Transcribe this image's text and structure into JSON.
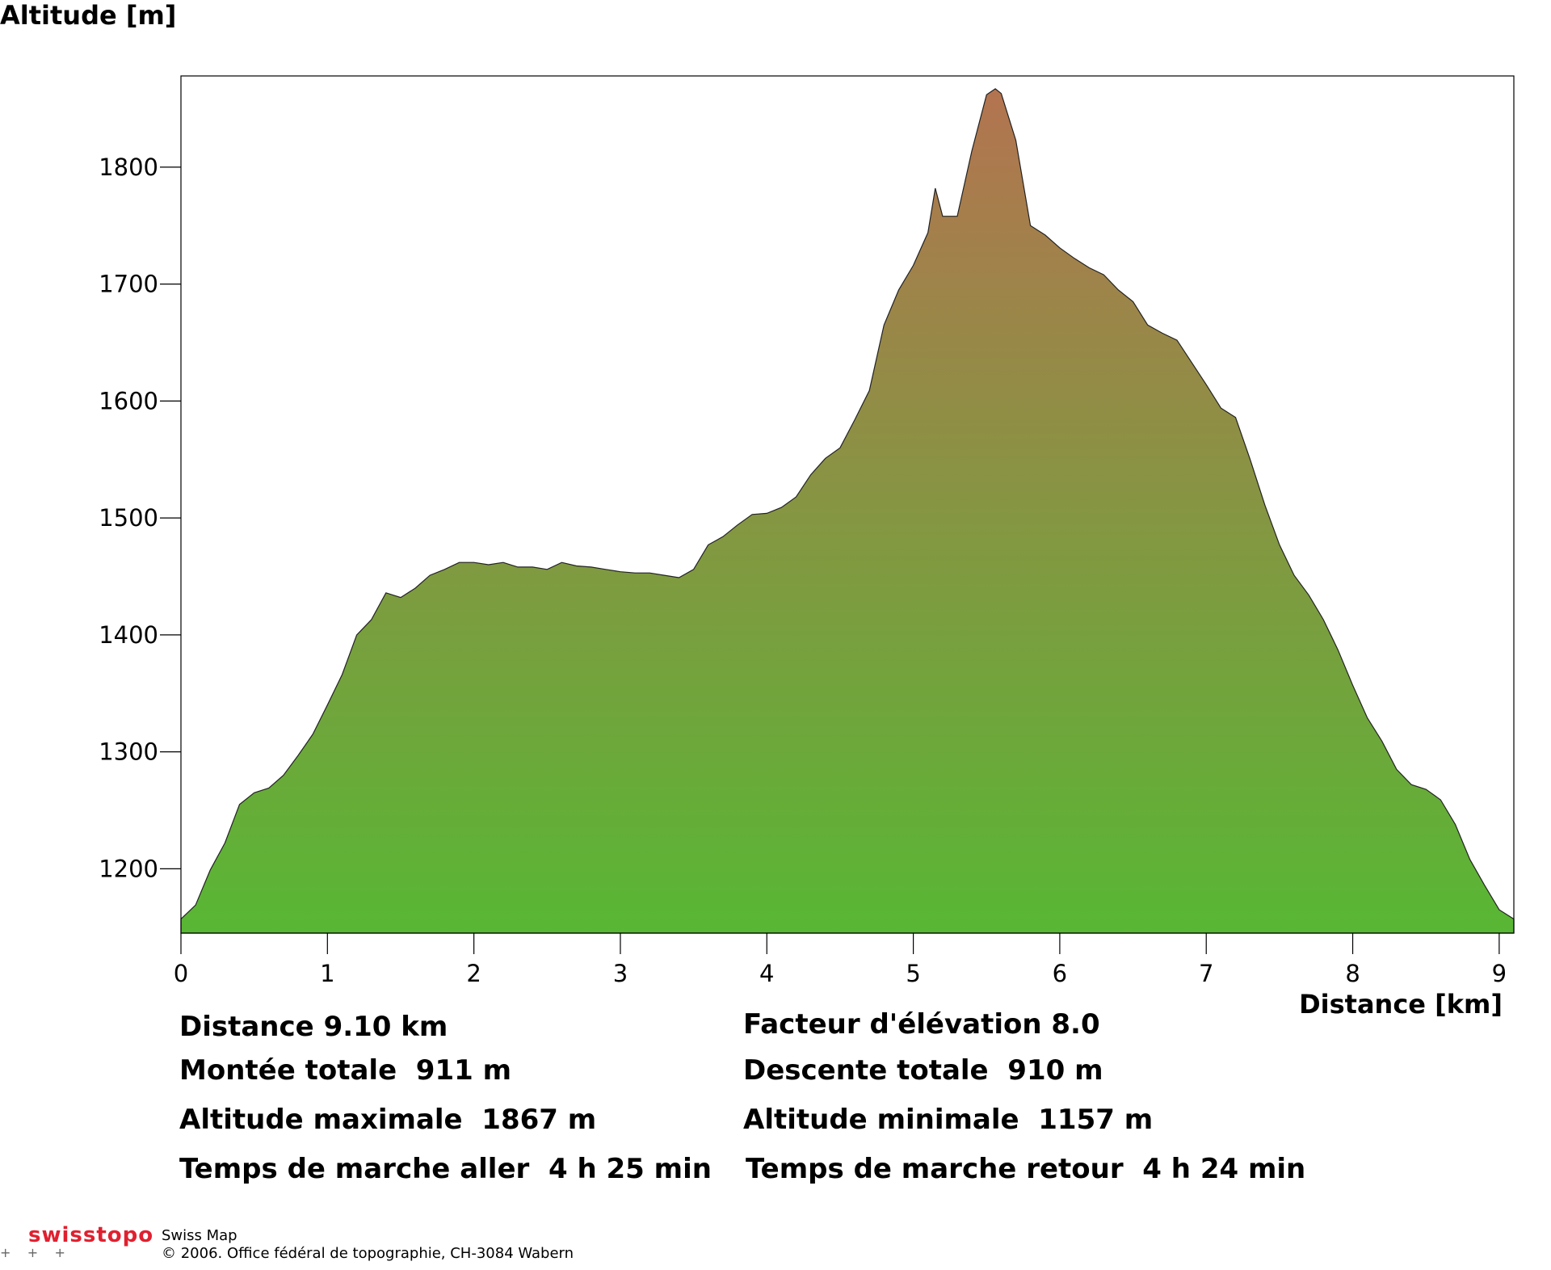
{
  "chart_data": {
    "type": "area",
    "ylabel": "Altitude [m]",
    "xlabel": "Distance [km]",
    "x": [
      0,
      0.1,
      0.2,
      0.3,
      0.4,
      0.5,
      0.6,
      0.7,
      0.8,
      0.9,
      1.0,
      1.1,
      1.2,
      1.3,
      1.4,
      1.5,
      1.6,
      1.7,
      1.8,
      1.9,
      2.0,
      2.1,
      2.2,
      2.3,
      2.4,
      2.5,
      2.6,
      2.7,
      2.8,
      2.9,
      3.0,
      3.1,
      3.2,
      3.3,
      3.4,
      3.5,
      3.6,
      3.7,
      3.8,
      3.9,
      4.0,
      4.1,
      4.2,
      4.3,
      4.4,
      4.5,
      4.6,
      4.7,
      4.8,
      4.9,
      5.0,
      5.1,
      5.15,
      5.2,
      5.3,
      5.4,
      5.5,
      5.56,
      5.6,
      5.7,
      5.8,
      5.9,
      6.0,
      6.1,
      6.2,
      6.3,
      6.4,
      6.5,
      6.6,
      6.7,
      6.8,
      6.9,
      7.0,
      7.1,
      7.2,
      7.3,
      7.4,
      7.5,
      7.6,
      7.7,
      7.8,
      7.9,
      8.0,
      8.1,
      8.2,
      8.3,
      8.4,
      8.5,
      8.6,
      8.7,
      8.8,
      8.9,
      9.0,
      9.1
    ],
    "values": [
      1157,
      1169,
      1199,
      1222,
      1255,
      1265,
      1269,
      1280,
      1297,
      1315,
      1340,
      1366,
      1400,
      1413,
      1436,
      1432,
      1440,
      1451,
      1456,
      1462,
      1462,
      1460,
      1462,
      1458,
      1458,
      1456,
      1462,
      1459,
      1458,
      1456,
      1454,
      1453,
      1453,
      1451,
      1449,
      1456,
      1477,
      1484,
      1494,
      1503,
      1504,
      1509,
      1518,
      1537,
      1551,
      1560,
      1584,
      1609,
      1665,
      1695,
      1716,
      1744,
      1782,
      1758,
      1758,
      1814,
      1862,
      1867,
      1863,
      1823,
      1750,
      1742,
      1731,
      1722,
      1714,
      1708,
      1695,
      1685,
      1665,
      1658,
      1652,
      1633,
      1614,
      1594,
      1586,
      1550,
      1511,
      1477,
      1451,
      1434,
      1413,
      1387,
      1357,
      1329,
      1309,
      1285,
      1272,
      1268,
      1259,
      1238,
      1208,
      1186,
      1165,
      1157
    ],
    "xlim": [
      0,
      9.1
    ],
    "ylim": [
      1145,
      1878
    ],
    "xticks": [
      0,
      1,
      2,
      3,
      4,
      5,
      6,
      7,
      8,
      9
    ],
    "yticks": [
      1200,
      1300,
      1400,
      1500,
      1600,
      1700,
      1800
    ],
    "gradient": [
      "#b37450",
      "#58b734"
    ]
  },
  "stats": {
    "left": [
      "Distance 9.10 km",
      "Montée totale  911 m",
      "Altitude maximale  1867 m",
      "Temps de marche aller  4 h 25 min"
    ],
    "right": [
      "Facteur d'élévation 8.0",
      "Descente totale  910 m",
      "Altitude minimale  1157 m",
      "Temps de marche retour  4 h 24 min"
    ]
  },
  "footer": {
    "brand": "swisstopo",
    "product": "Swiss Map",
    "copyright": "© 2006. Office fédéral de topographie, CH-3084 Wabern"
  }
}
